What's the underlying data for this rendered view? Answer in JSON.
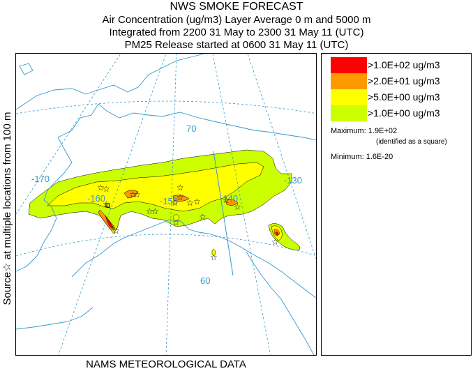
{
  "title": {
    "line1": "NWS SMOKE FORECAST",
    "line2": "Air Concentration (ug/m3) Layer Average    0 m and  5000 m",
    "line3": "Integrated from 2200 31 May to 2300 31 May 11 (UTC)",
    "line4": "PM25 Release started at 0600 31 May 11 (UTC)"
  },
  "side_label": "Source☆ at multiple locations  from   100 m",
  "footer": "NAMS METEOROLOGICAL DATA",
  "map": {
    "lon_labels": [
      "-170",
      "-160",
      "-150",
      "-140",
      "-130"
    ],
    "lat_labels": [
      "70",
      "60"
    ],
    "colors": {
      "graticule": "#3399cc",
      "coast": "#3399cc"
    }
  },
  "legend": {
    "items": [
      {
        "color": "#ff0000",
        "label": ">1.0E+02 ug/m3"
      },
      {
        "color": "#ff9900",
        "label": ">2.0E+01 ug/m3"
      },
      {
        "color": "#ffff00",
        "label": ">5.0E+00 ug/m3"
      },
      {
        "color": "#ccff00",
        "label": ">1.0E+00 ug/m3"
      }
    ],
    "maximum_label": "Maximum: 1.9E+02",
    "maximum_note": "(identified as a square)",
    "minimum_label": "Minimum: 1.6E-20"
  }
}
